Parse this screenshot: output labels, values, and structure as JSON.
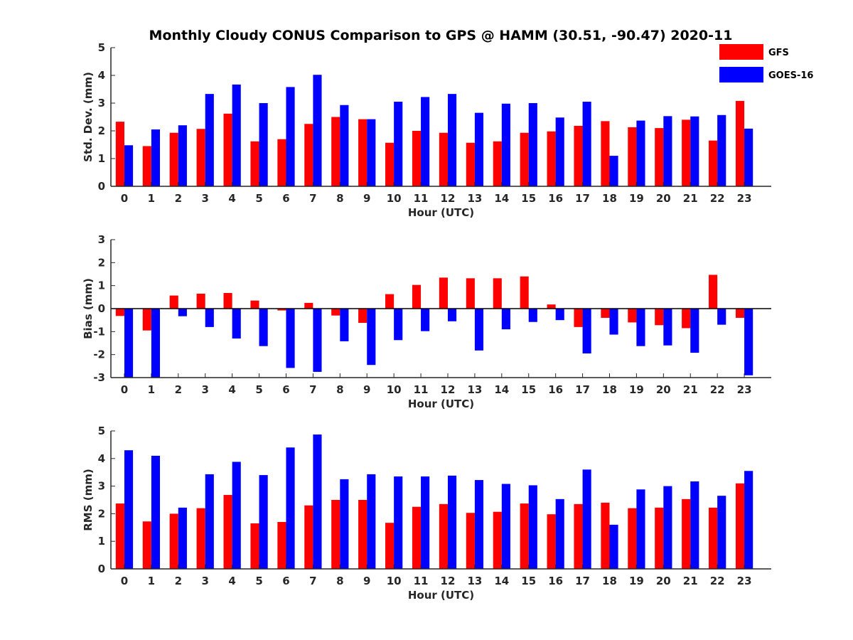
{
  "title": "Monthly Cloudy CONUS Comparison to GPS @ HAMM (30.51, -90.47) 2020-11",
  "legend": {
    "placement": "top-right",
    "items": [
      {
        "label": "GFS",
        "color": "#ff0000"
      },
      {
        "label": "GOES-16",
        "color": "#0000ff"
      }
    ]
  },
  "chart_data": [
    {
      "type": "bar",
      "xlabel": "Hour (UTC)",
      "ylabel": "Std. Dev. (mm)",
      "ylim": [
        0,
        5
      ],
      "yticks": [
        0,
        1,
        2,
        3,
        4,
        5
      ],
      "categories": [
        "0",
        "1",
        "2",
        "3",
        "4",
        "5",
        "6",
        "7",
        "8",
        "9",
        "10",
        "11",
        "12",
        "13",
        "14",
        "15",
        "16",
        "17",
        "18",
        "19",
        "20",
        "21",
        "22",
        "23"
      ],
      "series": [
        {
          "name": "GFS",
          "color": "#ff0000",
          "values": [
            2.33,
            1.45,
            1.93,
            2.07,
            2.62,
            1.62,
            1.7,
            2.25,
            2.5,
            2.42,
            1.57,
            2.0,
            1.93,
            1.57,
            1.62,
            1.93,
            1.98,
            2.18,
            2.35,
            2.13,
            2.1,
            2.4,
            1.65,
            3.08
          ]
        },
        {
          "name": "GOES-16",
          "color": "#0000ff",
          "values": [
            1.48,
            2.05,
            2.2,
            3.33,
            3.67,
            3.0,
            3.58,
            4.02,
            2.93,
            2.42,
            3.05,
            3.22,
            3.33,
            2.65,
            2.98,
            3.0,
            2.48,
            3.05,
            1.1,
            2.37,
            2.53,
            2.52,
            2.57,
            2.08
          ]
        }
      ]
    },
    {
      "type": "bar",
      "xlabel": "Hour (UTC)",
      "ylabel": "Bias (mm)",
      "ylim": [
        -3,
        3
      ],
      "yticks": [
        -3,
        -2,
        -1,
        0,
        1,
        2,
        3
      ],
      "zero_line": true,
      "categories": [
        "0",
        "1",
        "2",
        "3",
        "4",
        "5",
        "6",
        "7",
        "8",
        "9",
        "10",
        "11",
        "12",
        "13",
        "14",
        "15",
        "16",
        "17",
        "18",
        "19",
        "20",
        "21",
        "22",
        "23"
      ],
      "series": [
        {
          "name": "GFS",
          "color": "#ff0000",
          "values": [
            -0.32,
            -0.95,
            0.57,
            0.65,
            0.68,
            0.35,
            -0.08,
            0.25,
            -0.3,
            -0.62,
            0.63,
            1.03,
            1.35,
            1.32,
            1.32,
            1.4,
            0.18,
            -0.8,
            -0.4,
            -0.6,
            -0.72,
            -0.85,
            1.47,
            -0.4
          ]
        },
        {
          "name": "GOES-16",
          "color": "#0000ff",
          "values": [
            -3.0,
            -3.0,
            -0.33,
            -0.8,
            -1.3,
            -1.63,
            -2.58,
            -2.75,
            -1.42,
            -2.45,
            -1.37,
            -0.98,
            -0.55,
            -1.82,
            -0.9,
            -0.58,
            -0.5,
            -1.95,
            -1.13,
            -1.63,
            -1.6,
            -1.92,
            -0.7,
            -2.9
          ]
        }
      ]
    },
    {
      "type": "bar",
      "xlabel": "Hour (UTC)",
      "ylabel": "RMS (mm)",
      "ylim": [
        0,
        5
      ],
      "yticks": [
        0,
        1,
        2,
        3,
        4,
        5
      ],
      "categories": [
        "0",
        "1",
        "2",
        "3",
        "4",
        "5",
        "6",
        "7",
        "8",
        "9",
        "10",
        "11",
        "12",
        "13",
        "14",
        "15",
        "16",
        "17",
        "18",
        "19",
        "20",
        "21",
        "22",
        "23"
      ],
      "series": [
        {
          "name": "GFS",
          "color": "#ff0000",
          "values": [
            2.37,
            1.72,
            2.0,
            2.2,
            2.68,
            1.65,
            1.7,
            2.3,
            2.5,
            2.5,
            1.67,
            2.25,
            2.35,
            2.03,
            2.07,
            2.37,
            1.98,
            2.35,
            2.4,
            2.2,
            2.22,
            2.53,
            2.22,
            3.1
          ]
        },
        {
          "name": "GOES-16",
          "color": "#0000ff",
          "values": [
            4.3,
            4.1,
            2.22,
            3.43,
            3.88,
            3.4,
            4.4,
            4.87,
            3.25,
            3.43,
            3.35,
            3.35,
            3.38,
            3.22,
            3.08,
            3.03,
            2.53,
            3.6,
            1.6,
            2.88,
            3.0,
            3.17,
            2.65,
            3.55
          ]
        }
      ]
    }
  ]
}
